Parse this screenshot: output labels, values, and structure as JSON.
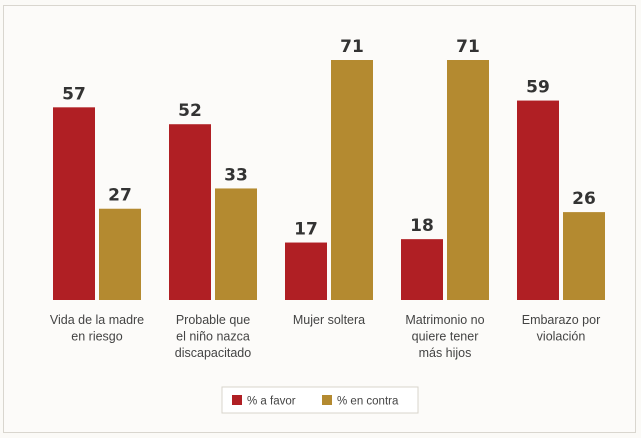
{
  "chart_data": {
    "type": "bar",
    "categories": [
      [
        "Vida de la madre",
        "en riesgo"
      ],
      [
        "Probable que",
        "el niño nazca",
        "discapacitado"
      ],
      [
        "Mujer soltera"
      ],
      [
        "Matrimonio no",
        "quiere tener",
        "más hijos"
      ],
      [
        "Embarazo por",
        "violación"
      ]
    ],
    "series": [
      {
        "name": "% a favor",
        "values": [
          57,
          52,
          17,
          18,
          59
        ],
        "color": "#b01f24"
      },
      {
        "name": "% en contra",
        "values": [
          27,
          33,
          71,
          71,
          26
        ],
        "color": "#b48a30"
      }
    ],
    "ylim": [
      0,
      71
    ],
    "legend_position": "bottom-center",
    "grid": false
  }
}
